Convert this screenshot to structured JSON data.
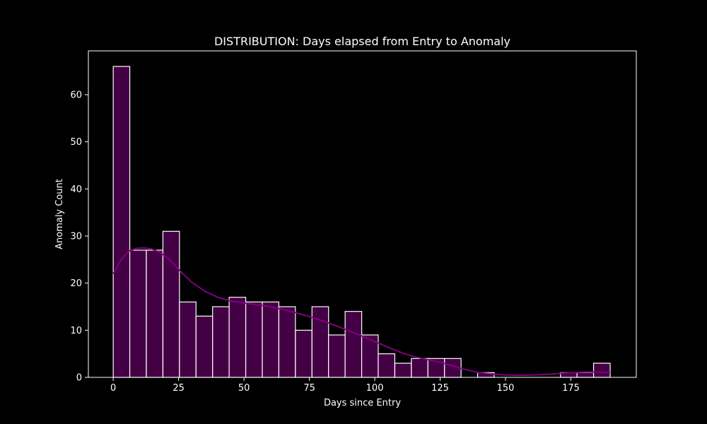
{
  "chart_data": {
    "type": "bar",
    "title": "DISTRIBUTION: Days elapsed from Entry to Anomaly",
    "xlabel": "Days since Entry",
    "ylabel": "Anomaly Count",
    "xlim": [
      -9.5,
      200
    ],
    "ylim": [
      0,
      69.3
    ],
    "xticks": [
      0,
      25,
      50,
      75,
      100,
      125,
      150,
      175
    ],
    "yticks": [
      0,
      10,
      20,
      30,
      40,
      50,
      60
    ],
    "grid": false,
    "bin_width": 6.33,
    "bins": [
      {
        "start": 0.0,
        "count": 66
      },
      {
        "start": 6.33,
        "count": 27
      },
      {
        "start": 12.67,
        "count": 27
      },
      {
        "start": 19.0,
        "count": 31
      },
      {
        "start": 25.33,
        "count": 16
      },
      {
        "start": 31.67,
        "count": 13
      },
      {
        "start": 38.0,
        "count": 15
      },
      {
        "start": 44.33,
        "count": 17
      },
      {
        "start": 50.67,
        "count": 16
      },
      {
        "start": 57.0,
        "count": 16
      },
      {
        "start": 63.33,
        "count": 15
      },
      {
        "start": 69.67,
        "count": 10
      },
      {
        "start": 76.0,
        "count": 15
      },
      {
        "start": 82.33,
        "count": 9
      },
      {
        "start": 88.67,
        "count": 14
      },
      {
        "start": 95.0,
        "count": 9
      },
      {
        "start": 101.33,
        "count": 5
      },
      {
        "start": 107.67,
        "count": 3
      },
      {
        "start": 114.0,
        "count": 4
      },
      {
        "start": 120.33,
        "count": 4
      },
      {
        "start": 126.67,
        "count": 4
      },
      {
        "start": 133.0,
        "count": 0
      },
      {
        "start": 139.33,
        "count": 1
      },
      {
        "start": 145.67,
        "count": 0
      },
      {
        "start": 152.0,
        "count": 0
      },
      {
        "start": 158.33,
        "count": 0
      },
      {
        "start": 164.67,
        "count": 0
      },
      {
        "start": 171.0,
        "count": 1
      },
      {
        "start": 177.33,
        "count": 1
      },
      {
        "start": 183.67,
        "count": 3
      }
    ],
    "kde_curve": {
      "x": [
        0,
        3,
        6,
        9,
        12,
        15,
        18,
        21,
        24,
        27,
        30,
        35,
        40,
        45,
        50,
        55,
        60,
        65,
        70,
        75,
        80,
        85,
        90,
        95,
        100,
        105,
        110,
        115,
        120,
        125,
        130,
        135,
        140,
        145,
        150,
        155,
        160,
        165,
        170,
        175,
        180,
        185,
        190
      ],
      "y": [
        22,
        25,
        26.8,
        27.4,
        27.5,
        27.2,
        26.5,
        25.2,
        23.5,
        21.8,
        20.2,
        18.3,
        17.0,
        16.2,
        15.8,
        15.4,
        15.0,
        14.4,
        13.7,
        12.9,
        12.0,
        11.0,
        9.9,
        8.8,
        7.6,
        6.4,
        5.3,
        4.4,
        3.8,
        3.2,
        2.4,
        1.6,
        1.0,
        0.7,
        0.5,
        0.45,
        0.5,
        0.6,
        0.8,
        1.0,
        1.1,
        1.1,
        1.0
      ]
    },
    "colors": {
      "background": "#000000",
      "bar_fill": "#440044",
      "bar_edge": "#ffffff",
      "kde_line": "#800080",
      "axis": "#ffffff",
      "text": "#ffffff"
    }
  }
}
